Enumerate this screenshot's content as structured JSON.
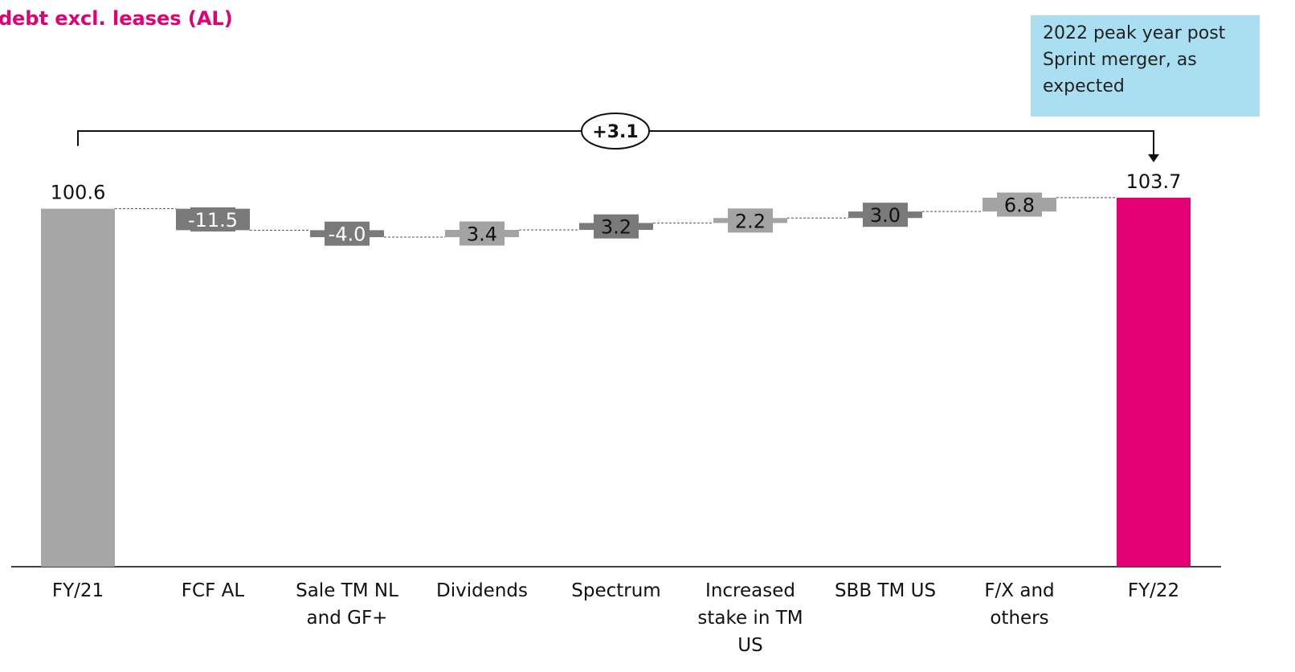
{
  "title": "t debt excl. leases (AL)",
  "callout": "2022 peak year post Sprint merger, as expected",
  "colors": {
    "accent": "#e20074",
    "callout_bg": "#a9dff0",
    "start_bar": "#a6a6a6",
    "dark_step": "#7a7a7a",
    "light_step": "#a3a3a3",
    "end_bar": "#e20074"
  },
  "chart_data": {
    "type": "bar",
    "subtype": "waterfall",
    "categories": [
      "FY/21",
      "FCF AL",
      "Sale TM NL and GF+",
      "Dividends",
      "Spectrum",
      "Increased stake in TM US",
      "SBB TM US",
      "F/X and others",
      "FY/22"
    ],
    "values": [
      100.6,
      -11.5,
      -4.0,
      3.4,
      3.2,
      2.2,
      3.0,
      6.8,
      103.7
    ],
    "value_labels": [
      "100.6",
      "-11.5",
      "-4.0",
      "3.4",
      "3.2",
      "2.2",
      "3.0",
      "6.8",
      "103.7"
    ],
    "change_label": "+3.1",
    "ylim": [
      0,
      120
    ],
    "grid": false,
    "xlabel": "",
    "ylabel": ""
  }
}
